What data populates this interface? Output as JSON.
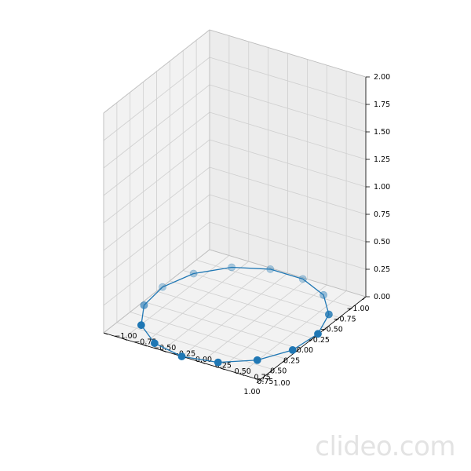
{
  "chart_data": {
    "type": "scatter",
    "projection": "3d",
    "title": "",
    "xlabel": "",
    "ylabel": "",
    "zlabel": "",
    "xlim": [
      -1.0,
      1.0
    ],
    "ylim": [
      -1.0,
      1.0
    ],
    "zlim": [
      0.0,
      2.0
    ],
    "grid": true,
    "x_ticks": [
      "−1.00",
      "−0.75",
      "−0.50",
      "−0.25",
      "0.00",
      "0.25",
      "0.50",
      "0.75",
      "1.00"
    ],
    "y_ticks": [
      "−1.00",
      "−0.75",
      "−0.50",
      "−0.25",
      "0.00",
      "0.25",
      "0.50",
      "0.75",
      "1.00"
    ],
    "z_ticks": [
      "0.00",
      "0.25",
      "0.50",
      "0.75",
      "1.00",
      "1.25",
      "1.50",
      "1.75",
      "2.00"
    ],
    "color": "#1f77b4",
    "series": [
      {
        "marker": "o",
        "line": true,
        "x": [
          1.0,
          0.9135,
          0.6691,
          0.309,
          -0.1045,
          -0.5,
          -0.809,
          -0.9781,
          -0.9781,
          -0.809,
          -0.5,
          -0.1045,
          0.309,
          0.6691,
          0.9135
        ],
        "y": [
          0.0,
          0.4067,
          0.7431,
          0.9511,
          0.9945,
          0.866,
          0.5878,
          0.2079,
          -0.2079,
          -0.5878,
          -0.866,
          -0.9945,
          -0.9511,
          -0.7431,
          -0.4067
        ],
        "z": [
          0,
          0,
          0,
          0,
          0,
          0,
          0,
          0,
          0,
          0,
          0,
          0,
          0,
          0,
          0
        ]
      }
    ]
  },
  "watermark": "clideo.com"
}
